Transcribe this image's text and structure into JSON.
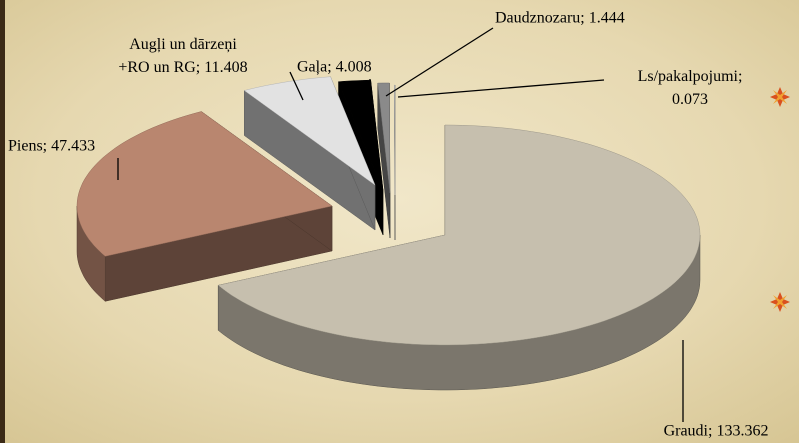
{
  "chart_data": {
    "type": "pie",
    "values": [
      133.362,
      47.433,
      11.408,
      4.008,
      1.444,
      0.073
    ],
    "value_labels": [
      "Graudi; 133.362",
      "Piens; 47.433",
      "Augļi un dārzeņi\n+RO un RG; 11.408",
      "Gaļa; 4.008",
      "Daudznozaru; 1.444",
      "Ls/pakalpojumi;\n0.073"
    ],
    "colors": [
      "#c6bfae",
      "#b9866f",
      "#e2e2e2",
      "#000000",
      "#8a8a8a",
      "#d4d4d4"
    ]
  }
}
